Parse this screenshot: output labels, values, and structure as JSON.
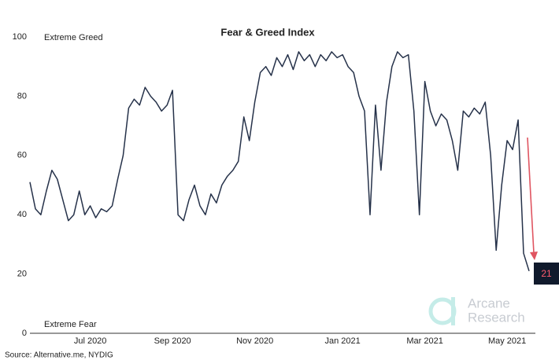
{
  "chart_data": {
    "type": "line",
    "title": "Fear & Greed Index",
    "annotations": [
      "Extreme Greed",
      "Extreme Fear"
    ],
    "source": "Source: Alternative.me, NYDIG",
    "watermark": [
      "Arcane",
      "Research"
    ],
    "categories": [
      null,
      null,
      null,
      null,
      null,
      null,
      null,
      null,
      null,
      null,
      null,
      "Jul 2020",
      null,
      null,
      null,
      null,
      null,
      null,
      null,
      null,
      null,
      null,
      null,
      null,
      null,
      null,
      "Sep 2020",
      null,
      null,
      null,
      null,
      null,
      null,
      null,
      null,
      null,
      null,
      null,
      null,
      null,
      null,
      "Nov 2020",
      null,
      null,
      null,
      null,
      null,
      null,
      null,
      null,
      null,
      null,
      null,
      null,
      null,
      null,
      null,
      "Jan 2021",
      null,
      null,
      null,
      null,
      null,
      null,
      null,
      null,
      null,
      null,
      null,
      null,
      null,
      null,
      "Mar 2021",
      null,
      null,
      null,
      null,
      null,
      null,
      null,
      null,
      null,
      null,
      null,
      null,
      null,
      null,
      "May 2021",
      null,
      null,
      null,
      null
    ],
    "series": [
      {
        "name": "Fear & Greed Index",
        "color": "#26324a",
        "values": [
          51,
          42,
          40,
          48,
          55,
          52,
          45,
          38,
          40,
          48,
          40,
          43,
          39,
          42,
          41,
          43,
          52,
          60,
          76,
          79,
          77,
          83,
          80,
          78,
          75,
          77,
          82,
          40,
          38,
          45,
          50,
          43,
          40,
          47,
          44,
          50,
          53,
          55,
          58,
          73,
          65,
          78,
          88,
          90,
          87,
          93,
          90,
          94,
          89,
          95,
          92,
          94,
          90,
          94,
          92,
          95,
          93,
          94,
          90,
          88,
          80,
          75,
          40,
          77,
          55,
          78,
          90,
          95,
          93,
          94,
          75,
          40,
          85,
          75,
          70,
          74,
          72,
          65,
          55,
          75,
          73,
          76,
          74,
          78,
          60,
          28,
          50,
          65,
          62,
          72,
          27,
          21
        ]
      }
    ],
    "ylim": [
      0,
      100
    ],
    "yticks": [
      0,
      20,
      40,
      60,
      80,
      100
    ],
    "grid": false
  }
}
